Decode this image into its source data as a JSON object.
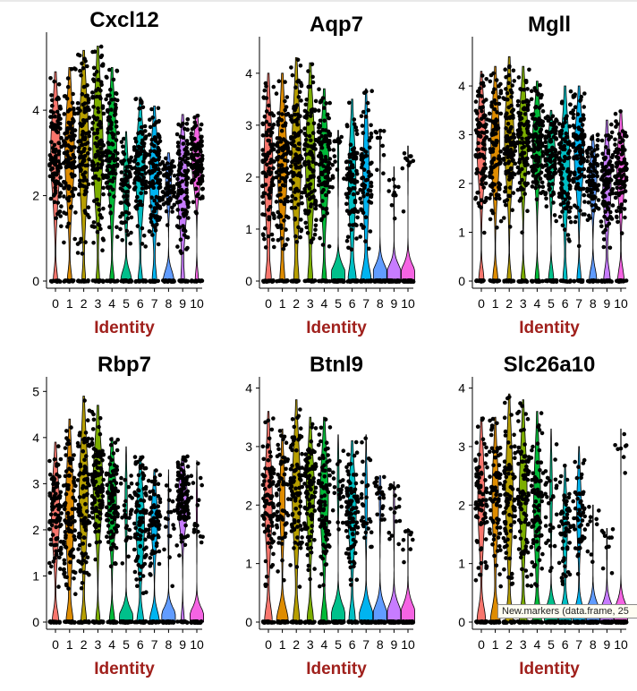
{
  "tooltip": "New.markers (data.frame, 25",
  "chart_data": [
    {
      "type": "violin",
      "title": "Cxcl12",
      "xlabel": "Identity",
      "ylabel": "",
      "ylim": [
        0,
        5.7
      ],
      "yticks": [
        0,
        2,
        4
      ],
      "categories": [
        "0",
        "1",
        "2",
        "3",
        "4",
        "5",
        "6",
        "7",
        "8",
        "9",
        "10"
      ],
      "zero_fraction": [
        0.2,
        0.2,
        0.15,
        0.15,
        0.2,
        0.5,
        0.2,
        0.2,
        0.5,
        0.15,
        0.15
      ],
      "expressed_median": [
        3.0,
        3.0,
        3.1,
        3.2,
        3.0,
        2.2,
        2.6,
        2.4,
        2.3,
        2.2,
        2.8
      ],
      "expressed_max": [
        4.9,
        5.0,
        5.4,
        5.5,
        5.0,
        3.5,
        4.3,
        4.1,
        3.0,
        3.9,
        3.9
      ]
    },
    {
      "type": "violin",
      "title": "Aqp7",
      "xlabel": "Identity",
      "ylabel": "",
      "ylim": [
        0,
        4.6
      ],
      "yticks": [
        0,
        1,
        2,
        3,
        4
      ],
      "categories": [
        "0",
        "1",
        "2",
        "3",
        "4",
        "5",
        "6",
        "7",
        "8",
        "9",
        "10"
      ],
      "zero_fraction": [
        0.25,
        0.2,
        0.2,
        0.2,
        0.2,
        0.9,
        0.35,
        0.45,
        0.95,
        0.95,
        0.95
      ],
      "expressed_median": [
        2.2,
        2.2,
        2.3,
        2.3,
        2.2,
        2.4,
        1.9,
        2.0,
        2.6,
        1.7,
        2.5
      ],
      "expressed_max": [
        4.0,
        4.0,
        4.3,
        4.2,
        3.7,
        2.9,
        3.5,
        3.7,
        2.9,
        2.2,
        2.6
      ]
    },
    {
      "type": "violin",
      "title": "Mgll",
      "xlabel": "Identity",
      "ylabel": "",
      "ylim": [
        0,
        4.9
      ],
      "yticks": [
        0,
        1,
        2,
        3,
        4
      ],
      "categories": [
        "0",
        "1",
        "2",
        "3",
        "4",
        "5",
        "6",
        "7",
        "8",
        "9",
        "10"
      ],
      "zero_fraction": [
        0.25,
        0.25,
        0.2,
        0.2,
        0.2,
        0.25,
        0.2,
        0.2,
        0.35,
        0.3,
        0.3
      ],
      "expressed_median": [
        2.8,
        2.8,
        2.9,
        2.9,
        2.8,
        2.5,
        2.4,
        2.6,
        2.1,
        2.0,
        2.3
      ],
      "expressed_max": [
        4.3,
        4.4,
        4.6,
        4.4,
        4.1,
        3.5,
        4.0,
        4.0,
        3.0,
        3.3,
        3.5
      ]
    },
    {
      "type": "violin",
      "title": "Rbp7",
      "xlabel": "Identity",
      "ylabel": "",
      "ylim": [
        0,
        5.2
      ],
      "yticks": [
        0,
        1,
        2,
        3,
        4,
        5
      ],
      "categories": [
        "0",
        "1",
        "2",
        "3",
        "4",
        "5",
        "6",
        "7",
        "8",
        "9",
        "10"
      ],
      "zero_fraction": [
        0.3,
        0.3,
        0.25,
        0.2,
        0.25,
        0.8,
        0.3,
        0.45,
        0.9,
        0.15,
        0.9
      ],
      "expressed_median": [
        2.4,
        2.4,
        2.8,
        3.0,
        2.6,
        2.5,
        2.1,
        2.2,
        2.2,
        2.6,
        2.5
      ],
      "expressed_max": [
        3.9,
        4.4,
        4.9,
        4.7,
        4.0,
        3.8,
        3.6,
        3.3,
        3.3,
        3.6,
        3.5
      ]
    },
    {
      "type": "violin",
      "title": "Btnl9",
      "xlabel": "Identity",
      "ylabel": "",
      "ylim": [
        0,
        4.1
      ],
      "yticks": [
        0,
        1,
        2,
        3,
        4
      ],
      "categories": [
        "0",
        "1",
        "2",
        "3",
        "4",
        "5",
        "6",
        "7",
        "8",
        "9",
        "10"
      ],
      "zero_fraction": [
        0.35,
        0.55,
        0.3,
        0.3,
        0.3,
        0.85,
        0.3,
        0.8,
        0.85,
        0.9,
        0.95
      ],
      "expressed_median": [
        2.1,
        2.1,
        2.2,
        2.2,
        2.1,
        2.4,
        1.9,
        2.1,
        2.2,
        2.0,
        1.6
      ],
      "expressed_max": [
        3.6,
        3.3,
        3.8,
        3.5,
        3.5,
        3.2,
        3.1,
        3.2,
        2.5,
        2.4,
        1.6
      ]
    },
    {
      "type": "violin",
      "title": "Slc26a10",
      "xlabel": "Identity",
      "ylabel": "",
      "ylim": [
        0,
        4.1
      ],
      "yticks": [
        0,
        1,
        2,
        3,
        4
      ],
      "categories": [
        "0",
        "1",
        "2",
        "3",
        "4",
        "5",
        "6",
        "7",
        "8",
        "9",
        "10"
      ],
      "zero_fraction": [
        0.4,
        0.45,
        0.35,
        0.35,
        0.4,
        0.8,
        0.6,
        0.6,
        0.95,
        0.95,
        0.97
      ],
      "expressed_median": [
        2.1,
        2.1,
        2.2,
        2.2,
        2.0,
        2.2,
        1.6,
        1.9,
        1.7,
        1.4,
        3.3
      ],
      "expressed_max": [
        3.5,
        3.5,
        3.9,
        3.8,
        3.6,
        3.3,
        2.7,
        3.0,
        2.0,
        1.6,
        3.3
      ]
    }
  ],
  "palette": [
    "#F8766D",
    "#DE8C00",
    "#B79F00",
    "#7CAE00",
    "#00BA38",
    "#00C08B",
    "#00BFC4",
    "#00B4F0",
    "#619CFF",
    "#C77CFF",
    "#F564E3",
    "#FF64B0"
  ]
}
